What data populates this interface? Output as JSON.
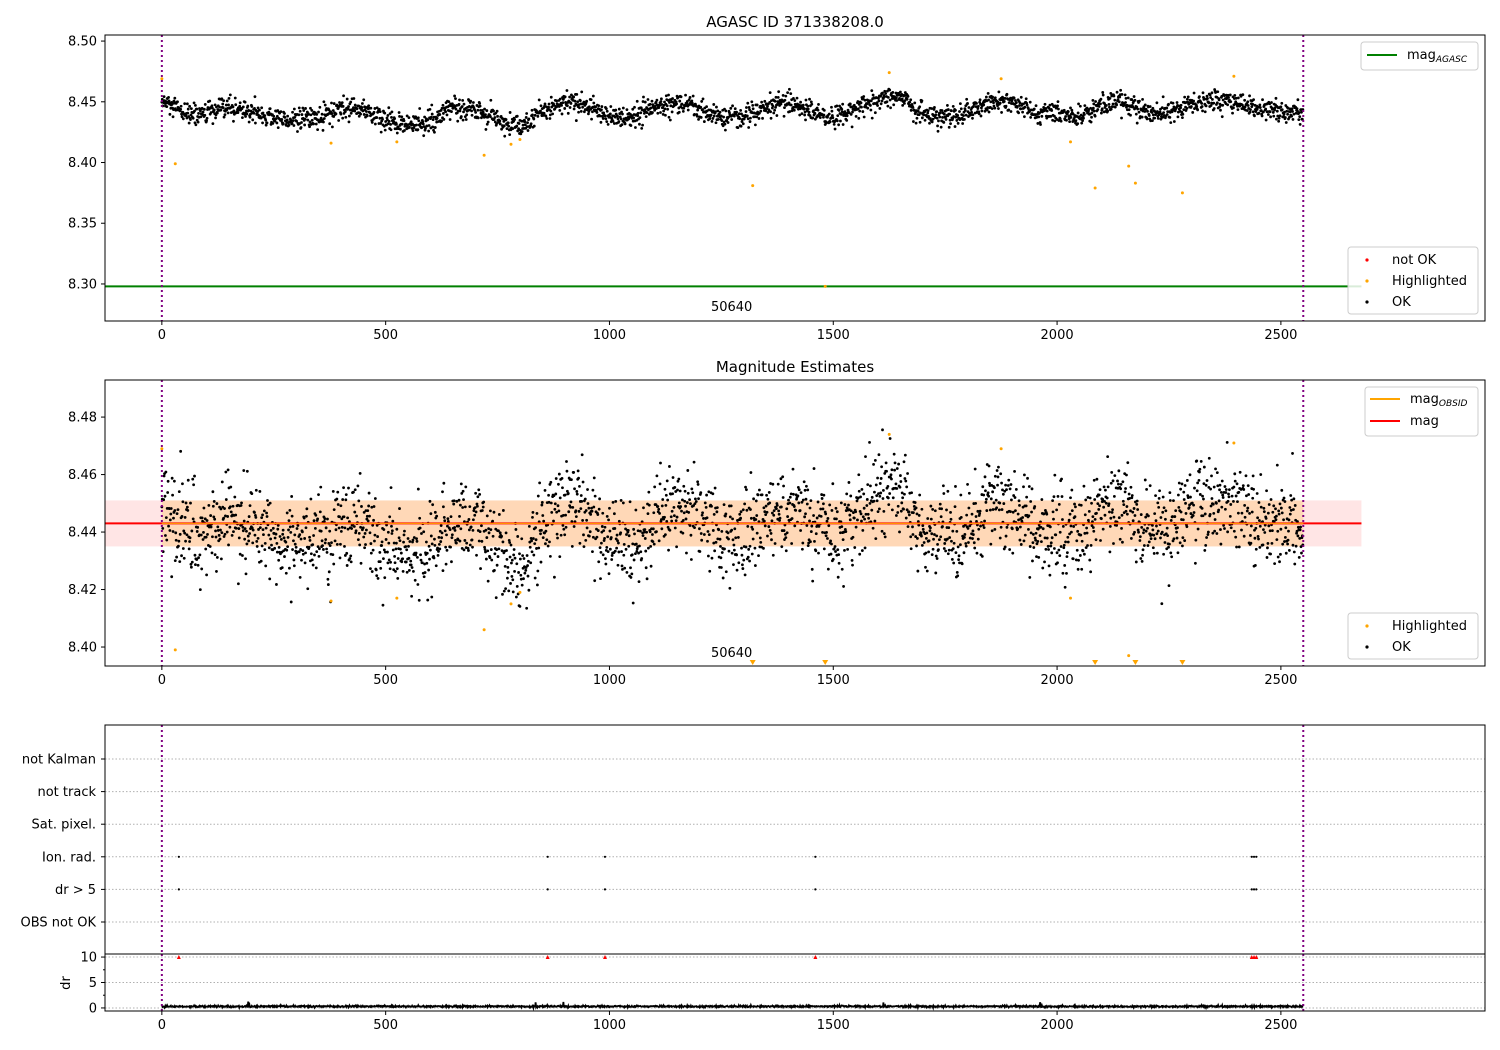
{
  "chart_data": [
    {
      "type": "scatter",
      "title": "AGASC ID 371338208.0",
      "xlim": [
        -127,
        2956
      ],
      "ylim": [
        8.2695,
        8.505
      ],
      "xticks": [
        0,
        500,
        1000,
        1500,
        2000,
        2500
      ],
      "yticks": [
        "8.30",
        "8.35",
        "8.40",
        "8.45",
        "8.50"
      ],
      "annotation": {
        "text": "50640",
        "x": 1273,
        "y": 8.2778
      },
      "vlines": [
        0,
        2550
      ],
      "hline": {
        "name": "mag_AGASC",
        "y": 8.298,
        "xmax": 2680,
        "color": "#008000"
      },
      "legend_lines": [
        {
          "label": "mag",
          "sub": "AGASC",
          "color": "#008000"
        }
      ],
      "legend_points": [
        {
          "label": "not OK",
          "color": "#ff0000"
        },
        {
          "label": "Highlighted",
          "color": "#ffa500"
        },
        {
          "label": "OK",
          "color": "#000000"
        }
      ],
      "ok_trend": {
        "step": 50,
        "noise_std": 0.0045,
        "count": 2550,
        "values": [
          8.45,
          8.44,
          8.44,
          8.445,
          8.442,
          8.437,
          8.435,
          8.437,
          8.443,
          8.445,
          8.433,
          8.432,
          8.433,
          8.445,
          8.445,
          8.435,
          8.428,
          8.442,
          8.45,
          8.447,
          8.438,
          8.437,
          8.445,
          8.45,
          8.443,
          8.437,
          8.437,
          8.445,
          8.45,
          8.443,
          8.437,
          8.445,
          8.452,
          8.455,
          8.44,
          8.438,
          8.44,
          8.45,
          8.45,
          8.44,
          8.44,
          8.437,
          8.448,
          8.45,
          8.44,
          8.443,
          8.448,
          8.452,
          8.45,
          8.445,
          8.442,
          8.44
        ]
      },
      "highlighted": [
        [
          0,
          8.469
        ],
        [
          30,
          8.399
        ],
        [
          378,
          8.416
        ],
        [
          525,
          8.417
        ],
        [
          720,
          8.406
        ],
        [
          780,
          8.415
        ],
        [
          800,
          8.419
        ],
        [
          1320,
          8.381
        ],
        [
          1482,
          8.298
        ],
        [
          1625,
          8.474
        ],
        [
          1875,
          8.469
        ],
        [
          2030,
          8.417
        ],
        [
          2085,
          8.379
        ],
        [
          2160,
          8.397
        ],
        [
          2175,
          8.383
        ],
        [
          2280,
          8.375
        ],
        [
          2395,
          8.471
        ]
      ]
    },
    {
      "type": "scatter",
      "title": "Magnitude Estimates",
      "xlim": [
        -127,
        2956
      ],
      "ylim": [
        8.3934,
        8.4929
      ],
      "xticks": [
        0,
        500,
        1000,
        1500,
        2000,
        2500
      ],
      "yticks": [
        "8.40",
        "8.42",
        "8.44",
        "8.46",
        "8.48"
      ],
      "annotation": {
        "text": "50640",
        "x": 1273,
        "y": 8.3965
      },
      "vlines": [
        0,
        2550
      ],
      "mag_line": {
        "y": 8.443,
        "band": [
          8.435,
          8.451
        ],
        "xmax": 2680,
        "color": "#ff0000"
      },
      "obsid_band": {
        "band": [
          8.435,
          8.451
        ],
        "xmin": 0,
        "xmax": 2550,
        "color": "#ffa500"
      },
      "legend_lines": [
        {
          "label": "mag",
          "sub": "OBSID",
          "color": "#ffa500"
        },
        {
          "label": "mag",
          "sub": "",
          "color": "#ff0000"
        }
      ],
      "legend_points": [
        {
          "label": "Highlighted",
          "color": "#ffa500"
        },
        {
          "label": "OK",
          "color": "#000000"
        }
      ],
      "ok_noise_std": 0.0075
    },
    {
      "type": "scatter",
      "title": "",
      "categories": [
        "OBS not OK",
        "dr > 5",
        "Ion. rad.",
        "Sat. pixel.",
        "not track",
        "not Kalman"
      ],
      "flag_points": {
        "dr > 5": [
          38,
          862,
          990,
          1460,
          2435,
          2440,
          2445
        ],
        "Ion. rad.": [
          38,
          862,
          990,
          1460,
          2435,
          2440,
          2445
        ]
      },
      "xlim": [
        -127,
        2956
      ],
      "vlines": [
        0,
        2550
      ]
    },
    {
      "type": "line",
      "ylabel": "dr",
      "ylim": [
        -0.6,
        10.6
      ],
      "yticks": [
        "0",
        "5",
        "10"
      ],
      "xticks": [
        "0",
        "500",
        "1000",
        "1500",
        "2000",
        "2500"
      ],
      "xlim": [
        -127,
        2956
      ],
      "dr_mean": 0.3,
      "dr_flagged": {
        "x": [
          38,
          862,
          990,
          1460,
          2435,
          2440,
          2445
        ],
        "y": 10
      }
    }
  ]
}
